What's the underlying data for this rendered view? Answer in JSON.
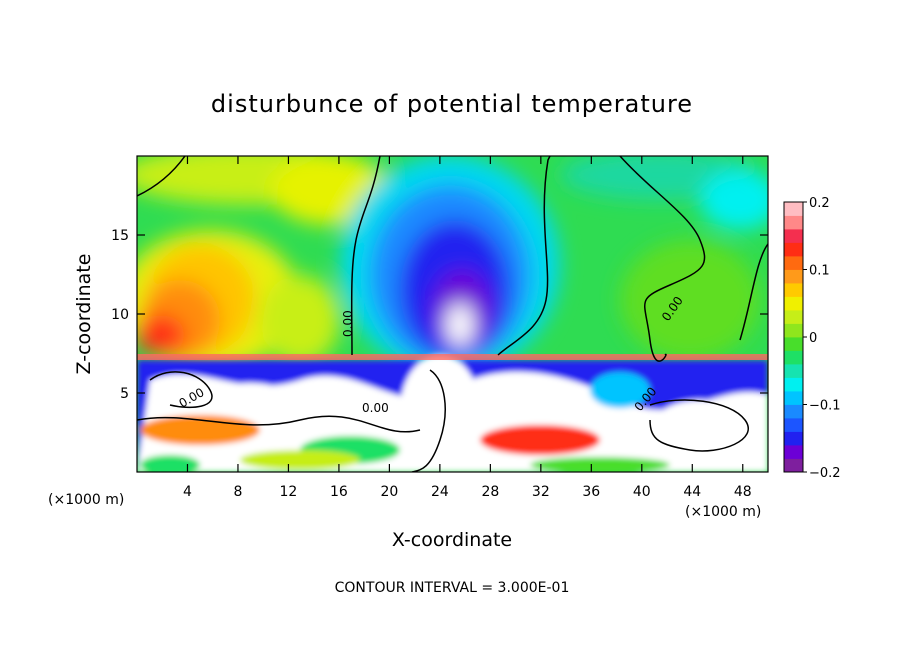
{
  "chart_data": {
    "type": "heatmap",
    "title": "disturbunce of potential temperature",
    "xlabel": "X-coordinate",
    "ylabel": "Z-coordinate",
    "x_unit_left": "(×1000 m)",
    "x_unit_right": "(×1000 m)",
    "footer": "CONTOUR INTERVAL = 3.000E-01",
    "xlim": [
      0,
      50
    ],
    "ylim": [
      0,
      20
    ],
    "x_ticks": [
      4,
      8,
      12,
      16,
      20,
      24,
      28,
      32,
      36,
      40,
      44,
      48
    ],
    "y_ticks": [
      5,
      10,
      15
    ],
    "contour_labels": [
      "0.00",
      "0.00",
      "0.00",
      "0.00",
      "0.00"
    ],
    "colorbar": {
      "range": [
        -0.2,
        0.2
      ],
      "tick_values": [
        0.2,
        0.1,
        0,
        -0.1,
        -0.2
      ],
      "tick_labels": [
        "0.2",
        "0.1",
        "0",
        "−0.1",
        "−0.2"
      ],
      "colors": [
        "#7e1f9e",
        "#6c00d6",
        "#2121f0",
        "#1c55ff",
        "#1a8aff",
        "#00c4ff",
        "#00f0f0",
        "#16e3b0",
        "#1ee065",
        "#48de2b",
        "#8fe61d",
        "#c6ee18",
        "#f0f000",
        "#ffca00",
        "#ff9a1a",
        "#ff6a10",
        "#ff2d14",
        "#f42f4f",
        "#ff8888",
        "#ffbdc2"
      ]
    }
  }
}
